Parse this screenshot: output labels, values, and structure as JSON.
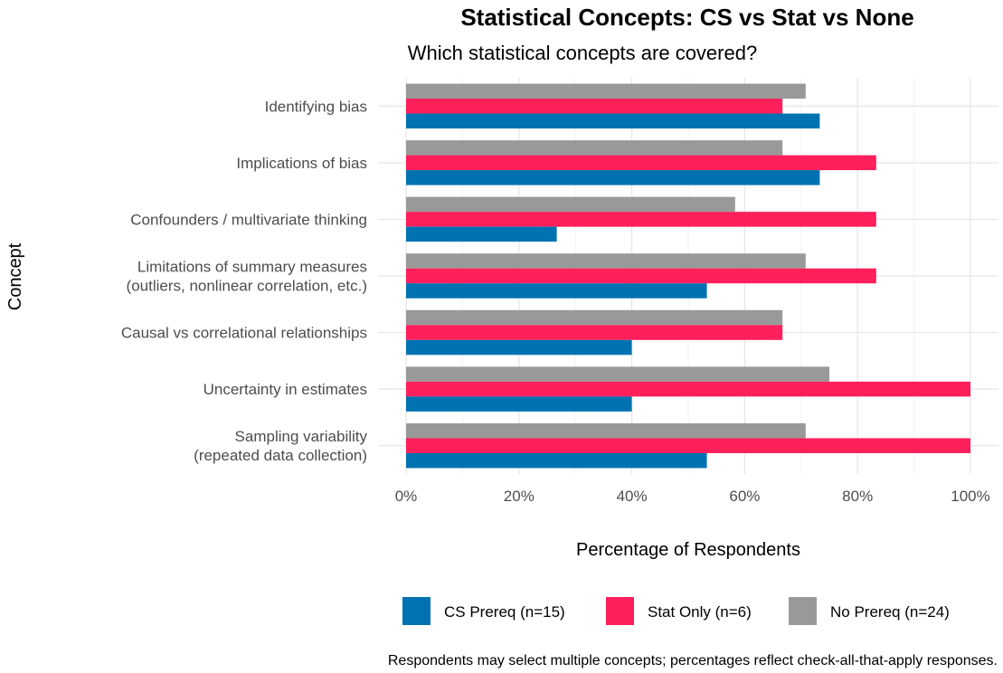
{
  "chart_data": {
    "type": "bar",
    "orientation": "horizontal",
    "title": "Statistical Concepts: CS vs Stat vs None",
    "subtitle": "Which statistical concepts are covered?",
    "xlabel": "Percentage of Respondents",
    "ylabel": "Concept",
    "xlim": [
      0,
      100
    ],
    "x_ticks": [
      {
        "value": 0,
        "label": "0%"
      },
      {
        "value": 20,
        "label": "20%"
      },
      {
        "value": 40,
        "label": "40%"
      },
      {
        "value": 60,
        "label": "60%"
      },
      {
        "value": 80,
        "label": "80%"
      },
      {
        "value": 100,
        "label": "100%"
      }
    ],
    "categories": [
      [
        "Identifying bias"
      ],
      [
        "Implications of bias"
      ],
      [
        "Confounders / multivariate thinking"
      ],
      [
        "Limitations of summary measures",
        "(outliers, nonlinear correlation, etc.)"
      ],
      [
        "Causal vs correlational relationships"
      ],
      [
        "Uncertainty in estimates"
      ],
      [
        "Sampling variability",
        "(repeated data collection)"
      ]
    ],
    "series": [
      {
        "name": "No Prereq (n=24)",
        "color": "#999999",
        "values": [
          70.8,
          66.7,
          58.3,
          70.8,
          66.7,
          75.0,
          70.8
        ]
      },
      {
        "name": "Stat Only (n=6)",
        "color": "#FF1F5B",
        "values": [
          66.7,
          83.3,
          83.3,
          83.3,
          66.7,
          100,
          100
        ]
      },
      {
        "name": "CS Prereq (n=15)",
        "color": "#0072B2",
        "values": [
          73.3,
          73.3,
          26.7,
          53.3,
          40.0,
          40.0,
          53.3
        ]
      }
    ],
    "legend": {
      "position": "bottom",
      "order": [
        "CS Prereq (n=15)",
        "Stat Only (n=6)",
        "No Prereq (n=24)"
      ]
    },
    "grid": true,
    "caption": "Respondents may select multiple concepts; percentages reflect check-all-that-apply responses."
  }
}
